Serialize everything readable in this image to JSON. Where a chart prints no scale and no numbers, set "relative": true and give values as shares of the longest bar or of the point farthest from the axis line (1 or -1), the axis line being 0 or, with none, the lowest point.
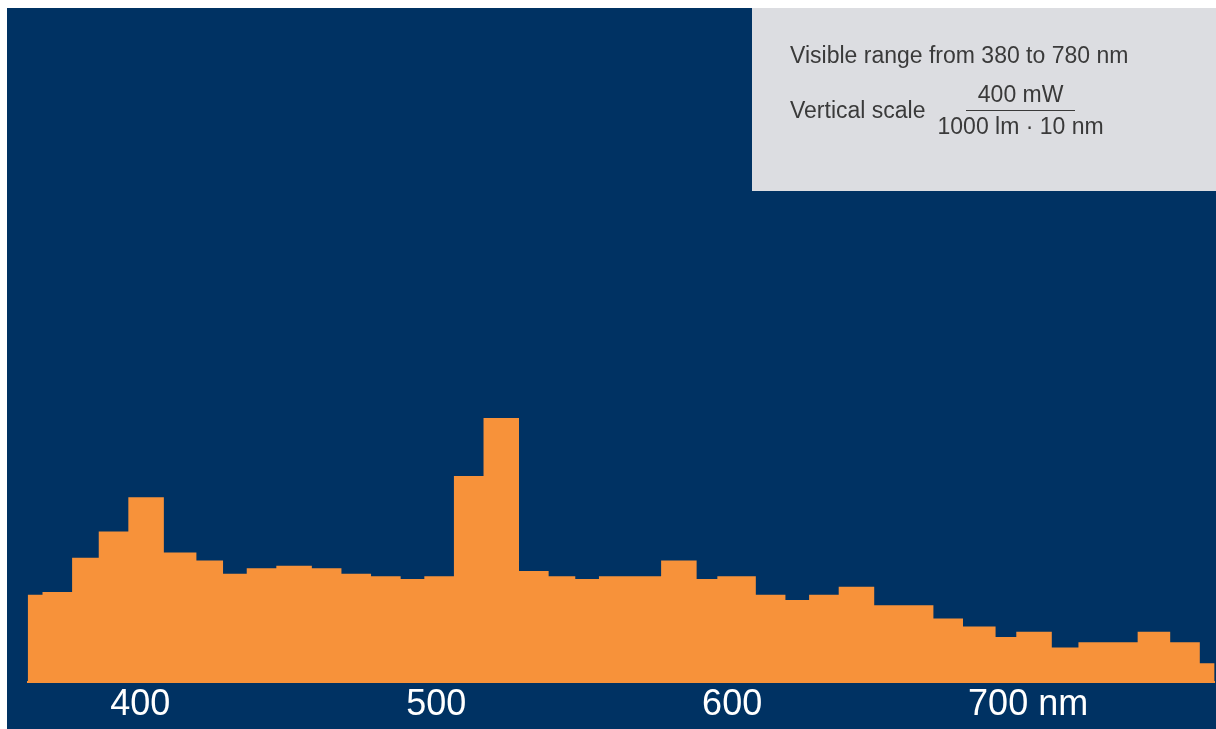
{
  "chart_data": {
    "type": "area",
    "relative": true,
    "color": "#f7923a",
    "x": [
      362,
      367,
      367,
      377,
      377,
      386,
      386,
      396,
      396,
      408,
      408,
      419,
      419,
      428,
      428,
      436,
      436,
      446,
      446,
      458,
      458,
      468,
      468,
      478,
      478,
      488,
      488,
      496,
      496,
      506,
      506,
      516,
      516,
      528,
      528,
      538,
      538,
      547,
      547,
      555,
      555,
      576,
      576,
      588,
      588,
      595,
      595,
      608,
      608,
      618,
      618,
      626,
      626,
      636,
      636,
      648,
      648,
      668,
      668,
      678,
      678,
      689,
      689,
      696,
      696,
      708,
      708,
      717,
      717,
      737,
      737,
      748,
      748,
      758,
      758,
      763
    ],
    "values": [
      0.33,
      0.33,
      0.34,
      0.34,
      0.47,
      0.47,
      0.57,
      0.57,
      0.7,
      0.7,
      0.49,
      0.49,
      0.46,
      0.46,
      0.41,
      0.41,
      0.43,
      0.43,
      0.44,
      0.44,
      0.43,
      0.43,
      0.41,
      0.41,
      0.4,
      0.4,
      0.39,
      0.39,
      0.4,
      0.4,
      0.78,
      0.78,
      1,
      1,
      0.42,
      0.42,
      0.4,
      0.4,
      0.39,
      0.39,
      0.4,
      0.4,
      0.46,
      0.46,
      0.39,
      0.39,
      0.4,
      0.4,
      0.33,
      0.33,
      0.31,
      0.31,
      0.33,
      0.33,
      0.36,
      0.36,
      0.29,
      0.29,
      0.24,
      0.24,
      0.21,
      0.21,
      0.17,
      0.17,
      0.19,
      0.19,
      0.13,
      0.13,
      0.15,
      0.15,
      0.19,
      0.19,
      0.15,
      0.15,
      0.07,
      0.07
    ],
    "xlim": [
      362,
      763
    ],
    "xticks": [
      400,
      500,
      600,
      {
        "value": 700,
        "label": "700 nm"
      }
    ],
    "grid": false,
    "legend": false,
    "annotations": [
      "Visible range from 380 to 780 nm",
      "Vertical scale",
      "400 mW",
      "1000 lm · 10 nm"
    ]
  }
}
